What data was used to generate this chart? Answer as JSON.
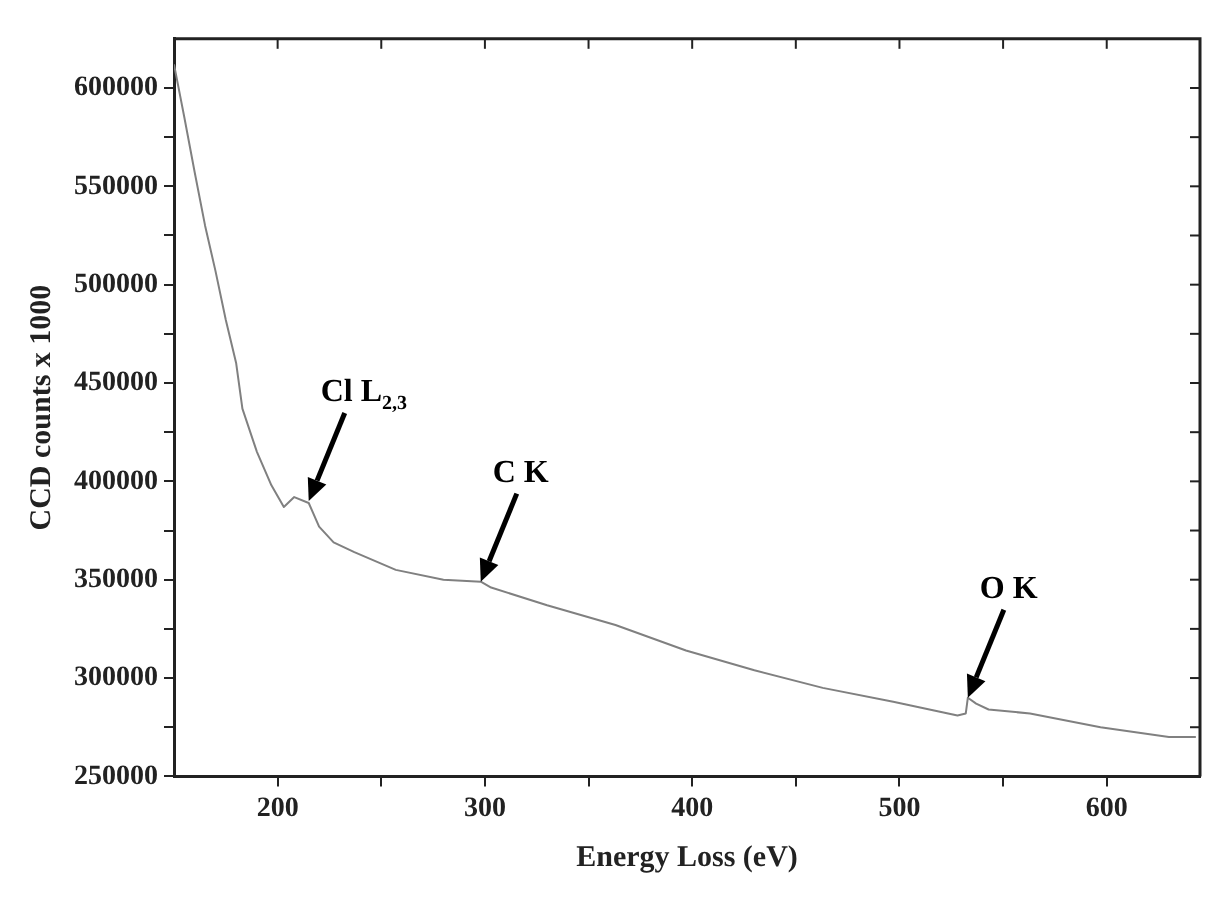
{
  "chart_data": {
    "type": "line",
    "xlabel": "Energy Loss (eV)",
    "ylabel": "CCD counts x 1000",
    "x": [
      150,
      155,
      160,
      165,
      170,
      175,
      180,
      183,
      190,
      197,
      203,
      208,
      215,
      220,
      227,
      237,
      257,
      280,
      298,
      303,
      330,
      363,
      397,
      430,
      463,
      497,
      528,
      532,
      533,
      537,
      543,
      563,
      597,
      630,
      643
    ],
    "series": [
      {
        "color": "#808080",
        "values": [
          612000,
          585000,
          557000,
          530000,
          507000,
          482000,
          460000,
          437000,
          415000,
          398000,
          387000,
          392000,
          389000,
          377000,
          369000,
          364000,
          355000,
          350000,
          349000,
          346000,
          337000,
          327000,
          314000,
          304000,
          295000,
          288000,
          281000,
          282000,
          290000,
          287000,
          284000,
          282000,
          275000,
          270000,
          270000
        ]
      }
    ],
    "xlim": [
      150,
      645
    ],
    "ylim": [
      250000,
      625000
    ],
    "xticks": [
      200,
      {
        "value": 250,
        "label": null
      },
      300,
      {
        "value": 350,
        "label": null
      },
      400,
      {
        "value": 450,
        "label": null
      },
      500,
      {
        "value": 550,
        "label": null
      },
      600
    ],
    "yticks": [
      250000,
      {
        "value": 275000,
        "label": null
      },
      300000,
      {
        "value": 325000,
        "label": null
      },
      350000,
      {
        "value": 375000,
        "label": null
      },
      400000,
      {
        "value": 425000,
        "label": null
      },
      450000,
      {
        "value": 475000,
        "label": null
      },
      500000,
      {
        "value": 525000,
        "label": null
      },
      550000,
      {
        "value": 575000,
        "label": null
      },
      600000
    ],
    "grid": false,
    "legend": false,
    "marker": "none",
    "line_style": "solid",
    "annotations": [
      {
        "text": "Cl L$_{2,3}$",
        "x": 215,
        "y": 390000
      },
      {
        "text": "C K",
        "x": 298,
        "y": 349000
      },
      {
        "text": "O K",
        "x": 533,
        "y": 290000
      }
    ]
  }
}
